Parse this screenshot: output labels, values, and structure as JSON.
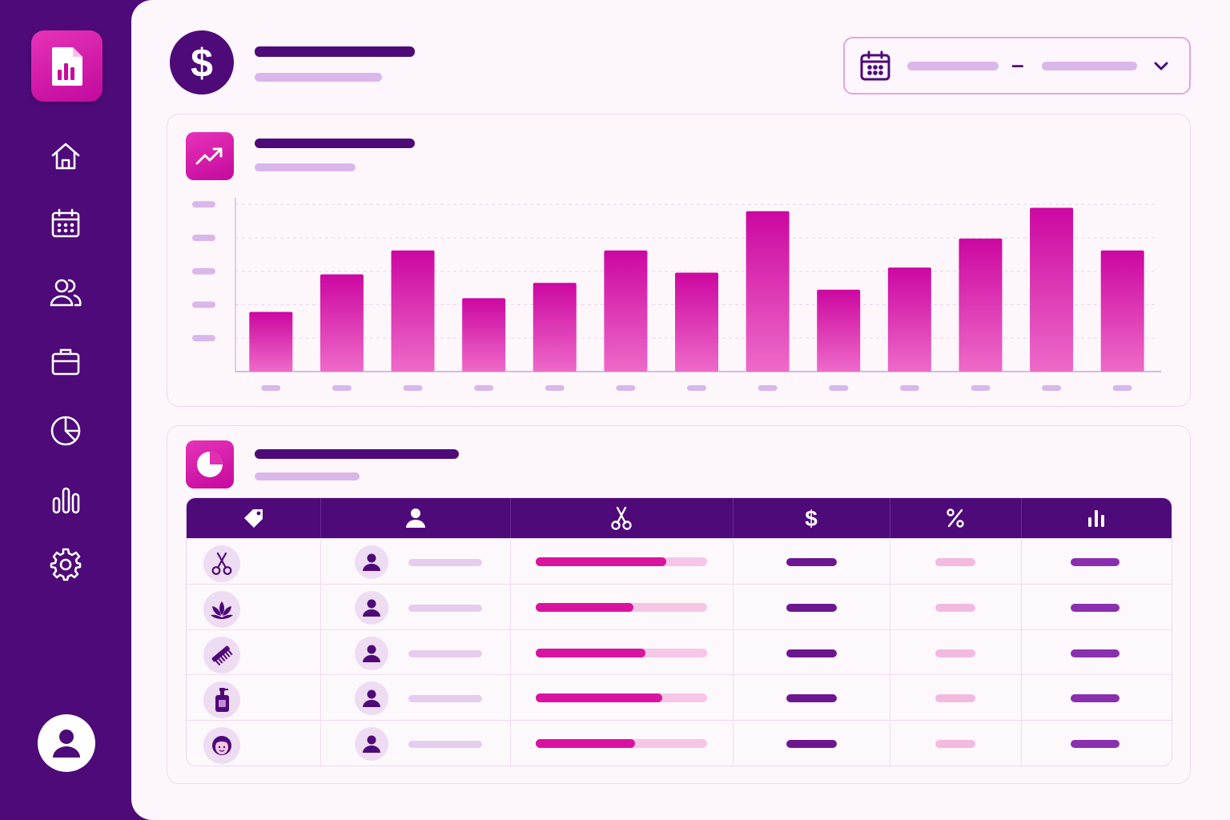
{
  "colors": {
    "sidebar": "#4e0a78",
    "accent": "#d10ba2",
    "panel": "#fdf6fc",
    "placeholder_light": "#d9b7ea"
  },
  "sidebar": {
    "logo_icon": "report-chart-icon",
    "items": [
      {
        "icon": "home-icon"
      },
      {
        "icon": "calendar-icon"
      },
      {
        "icon": "users-icon"
      },
      {
        "icon": "briefcase-icon"
      },
      {
        "icon": "pie-chart-icon"
      },
      {
        "icon": "bar-chart-icon"
      },
      {
        "icon": "gear-icon"
      }
    ],
    "user_icon": "user-avatar-icon"
  },
  "header": {
    "badge_icon": "dollar-icon",
    "date_range": {
      "icon": "calendar-icon",
      "separator": "–",
      "toggle_icon": "chevron-down-icon"
    }
  },
  "revenue_card": {
    "icon": "trend-up-icon"
  },
  "chart_data": {
    "type": "bar",
    "categories": [
      "",
      "",
      "",
      "",
      "",
      "",
      "",
      "",
      "",
      "",
      "",
      "",
      ""
    ],
    "values": [
      35,
      57,
      71,
      43,
      52,
      71,
      58,
      94,
      48,
      61,
      78,
      96,
      71
    ],
    "ylim": [
      0,
      100
    ],
    "grid": true
  },
  "services_card": {
    "icon": "pie-chart-icon",
    "table": {
      "header_icons": [
        "tag-icon",
        "user-icon",
        "scissors-icon",
        "dollar-icon",
        "percent-icon",
        "bar-chart-icon"
      ],
      "rows": [
        {
          "service_icon": "scissors-icon",
          "share": 0.76
        },
        {
          "service_icon": "lotus-icon",
          "share": 0.57
        },
        {
          "service_icon": "comb-icon",
          "share": 0.64
        },
        {
          "service_icon": "bottle-icon",
          "share": 0.74
        },
        {
          "service_icon": "face-icon",
          "share": 0.58
        }
      ]
    }
  }
}
